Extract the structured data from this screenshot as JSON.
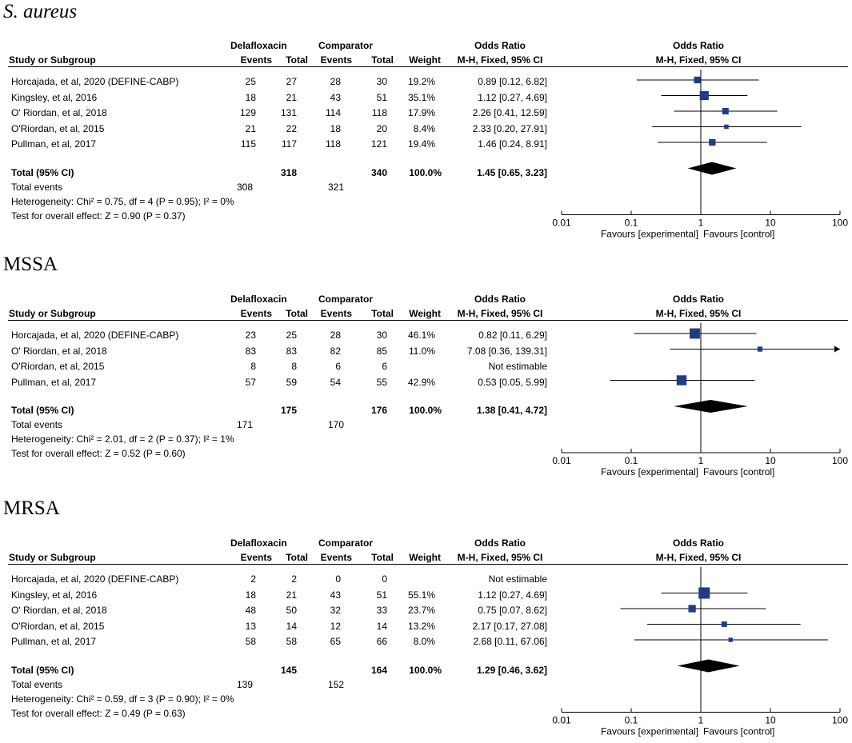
{
  "headers": {
    "group1": "Delafloxacin",
    "group2": "Comparator",
    "or_header": "Odds Ratio",
    "study": "Study or Subgroup",
    "events": "Events",
    "total": "Total",
    "weight": "Weight",
    "method": "M-H, Fixed, 95% CI",
    "total_row": "Total (95% CI)",
    "total_events": "Total events"
  },
  "axis": {
    "ticks": [
      "0.01",
      "0.1",
      "1",
      "10",
      "100"
    ],
    "favours_left": "Favours [experimental]",
    "favours_right": "Favours [control]"
  },
  "colors": {
    "marker": "#1f3d87",
    "line": "#000000"
  },
  "chart_data": [
    {
      "type": "forest",
      "title": "S. aureus",
      "xscale": "log",
      "xlim": [
        0.01,
        100
      ],
      "studies": [
        {
          "name": "Horcajada, et al, 2020 (DEFINE-CABP)",
          "e1": "25",
          "t1": "27",
          "e2": "28",
          "t2": "30",
          "weight": "19.2%",
          "ci_text": "0.89 [0.12, 6.82]",
          "or": 0.89,
          "lo": 0.12,
          "hi": 6.82,
          "w": 19.2
        },
        {
          "name": "Kingsley, et al, 2016",
          "e1": "18",
          "t1": "21",
          "e2": "43",
          "t2": "51",
          "weight": "35.1%",
          "ci_text": "1.12 [0.27, 4.69]",
          "or": 1.12,
          "lo": 0.27,
          "hi": 4.69,
          "w": 35.1
        },
        {
          "name": "O' Riordan, et al, 2018",
          "e1": "129",
          "t1": "131",
          "e2": "114",
          "t2": "118",
          "weight": "17.9%",
          "ci_text": "2.26 [0.41, 12.59]",
          "or": 2.26,
          "lo": 0.41,
          "hi": 12.59,
          "w": 17.9
        },
        {
          "name": "O'Riordan, et al, 2015",
          "e1": "21",
          "t1": "22",
          "e2": "18",
          "t2": "20",
          "weight": "8.4%",
          "ci_text": "2.33 [0.20, 27.91]",
          "or": 2.33,
          "lo": 0.2,
          "hi": 27.91,
          "w": 8.4
        },
        {
          "name": "Pullman, et al, 2017",
          "e1": "115",
          "t1": "117",
          "e2": "118",
          "t2": "121",
          "weight": "19.4%",
          "ci_text": "1.46 [0.24, 8.91]",
          "or": 1.46,
          "lo": 0.24,
          "hi": 8.91,
          "w": 19.4
        }
      ],
      "total": {
        "t1": "318",
        "t2": "340",
        "weight": "100.0%",
        "ci_text": "1.45 [0.65, 3.23]",
        "or": 1.45,
        "lo": 0.65,
        "hi": 3.23
      },
      "total_events": {
        "e1": "308",
        "e2": "321"
      },
      "heterogeneity": "Heterogeneity: Chi² = 0.75, df = 4 (P = 0.95); I² = 0%",
      "overall_effect": "Test for overall effect: Z = 0.90 (P = 0.37)"
    },
    {
      "type": "forest",
      "title": "MSSA",
      "xscale": "log",
      "xlim": [
        0.01,
        100
      ],
      "studies": [
        {
          "name": "Horcajada, et al, 2020 (DEFINE-CABP)",
          "e1": "23",
          "t1": "25",
          "e2": "28",
          "t2": "30",
          "weight": "46.1%",
          "ci_text": "0.82 [0.11, 6.29]",
          "or": 0.82,
          "lo": 0.11,
          "hi": 6.29,
          "w": 46.1
        },
        {
          "name": "O' Riordan, et al, 2018",
          "e1": "83",
          "t1": "83",
          "e2": "82",
          "t2": "85",
          "weight": "11.0%",
          "ci_text": "7.08 [0.36, 139.31]",
          "or": 7.08,
          "lo": 0.36,
          "hi": 139.31,
          "w": 11.0
        },
        {
          "name": "O'Riordan, et al, 2015",
          "e1": "8",
          "t1": "8",
          "e2": "6",
          "t2": "6",
          "weight": "",
          "ci_text": "Not estimable",
          "or": null,
          "lo": null,
          "hi": null,
          "w": 0
        },
        {
          "name": "Pullman, et al, 2017",
          "e1": "57",
          "t1": "59",
          "e2": "54",
          "t2": "55",
          "weight": "42.9%",
          "ci_text": "0.53 [0.05, 5.99]",
          "or": 0.53,
          "lo": 0.05,
          "hi": 5.99,
          "w": 42.9
        }
      ],
      "total": {
        "t1": "175",
        "t2": "176",
        "weight": "100.0%",
        "ci_text": "1.38 [0.41, 4.72]",
        "or": 1.38,
        "lo": 0.41,
        "hi": 4.72
      },
      "total_events": {
        "e1": "171",
        "e2": "170"
      },
      "heterogeneity": "Heterogeneity: Chi² = 2.01, df = 2 (P = 0.37); I² = 1%",
      "overall_effect": "Test for overall effect: Z = 0.52 (P = 0.60)"
    },
    {
      "type": "forest",
      "title": "MRSA",
      "xscale": "log",
      "xlim": [
        0.01,
        100
      ],
      "studies": [
        {
          "name": "Horcajada, et al, 2020 (DEFINE-CABP)",
          "e1": "2",
          "t1": "2",
          "e2": "0",
          "t2": "0",
          "weight": "",
          "ci_text": "Not estimable",
          "or": null,
          "lo": null,
          "hi": null,
          "w": 0
        },
        {
          "name": "Kingsley, et al, 2016",
          "e1": "18",
          "t1": "21",
          "e2": "43",
          "t2": "51",
          "weight": "55.1%",
          "ci_text": "1.12 [0.27, 4.69]",
          "or": 1.12,
          "lo": 0.27,
          "hi": 4.69,
          "w": 55.1
        },
        {
          "name": "O' Riordan, et al, 2018",
          "e1": "48",
          "t1": "50",
          "e2": "32",
          "t2": "33",
          "weight": "23.7%",
          "ci_text": "0.75 [0.07, 8.62]",
          "or": 0.75,
          "lo": 0.07,
          "hi": 8.62,
          "w": 23.7
        },
        {
          "name": "O'Riordan, et al, 2015",
          "e1": "13",
          "t1": "14",
          "e2": "12",
          "t2": "14",
          "weight": "13.2%",
          "ci_text": "2.17 [0.17, 27.08]",
          "or": 2.17,
          "lo": 0.17,
          "hi": 27.08,
          "w": 13.2
        },
        {
          "name": "Pullman, et al, 2017",
          "e1": "58",
          "t1": "58",
          "e2": "65",
          "t2": "66",
          "weight": "8.0%",
          "ci_text": "2.68 [0.11, 67.06]",
          "or": 2.68,
          "lo": 0.11,
          "hi": 67.06,
          "w": 8.0
        }
      ],
      "total": {
        "t1": "145",
        "t2": "164",
        "weight": "100.0%",
        "ci_text": "1.29 [0.46, 3.62]",
        "or": 1.29,
        "lo": 0.46,
        "hi": 3.62
      },
      "total_events": {
        "e1": "139",
        "e2": "152"
      },
      "heterogeneity": "Heterogeneity: Chi² = 0.59, df = 3 (P = 0.90); I² = 0%",
      "overall_effect": "Test for overall effect: Z = 0.49 (P = 0.63)"
    }
  ]
}
